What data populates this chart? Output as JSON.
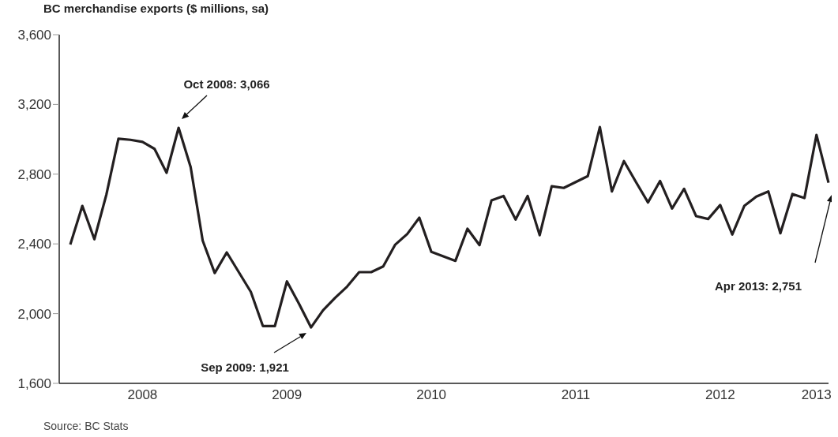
{
  "chart_data": {
    "type": "line",
    "title": "BC merchandise exports ($ millions, sa)",
    "categories": [
      null,
      null,
      null,
      null,
      null,
      null,
      "2008",
      null,
      null,
      null,
      null,
      null,
      null,
      null,
      null,
      null,
      null,
      null,
      "2009",
      null,
      null,
      null,
      null,
      null,
      null,
      null,
      null,
      null,
      null,
      null,
      "2010",
      null,
      null,
      null,
      null,
      null,
      null,
      null,
      null,
      null,
      null,
      null,
      "2011",
      null,
      null,
      null,
      null,
      null,
      null,
      null,
      null,
      null,
      null,
      null,
      "2012",
      null,
      null,
      null,
      null,
      null,
      null,
      null,
      "2013",
      null
    ],
    "series": [
      {
        "color": "#231f20",
        "values": [
          2396,
          2618,
          2427,
          2683,
          3003,
          2997,
          2985,
          2945,
          2808,
          3066,
          2841,
          2419,
          2233,
          2351,
          2238,
          2125,
          1929,
          1929,
          2185,
          2057,
          1921,
          2019,
          2090,
          2155,
          2238,
          2238,
          2271,
          2396,
          2457,
          2550,
          2354,
          2328,
          2303,
          2487,
          2393,
          2650,
          2675,
          2540,
          2675,
          2450,
          2731,
          2721,
          2755,
          2789,
          3070,
          2701,
          2875,
          2755,
          2638,
          2761,
          2603,
          2716,
          2559,
          2543,
          2623,
          2454,
          2618,
          2671,
          2701,
          2461,
          2686,
          2663,
          3025,
          2751
        ]
      }
    ],
    "ylim": [
      1600,
      3600
    ],
    "yticks": [
      {
        "value": 1600,
        "label": "1,600"
      },
      {
        "value": 2000,
        "label": "2,000"
      },
      {
        "value": 2400,
        "label": "2,400"
      },
      {
        "value": 2800,
        "label": "2,800"
      },
      {
        "value": 3200,
        "label": "3,200"
      },
      {
        "value": 3600,
        "label": "3,600"
      }
    ],
    "grid": false,
    "legend": false,
    "marker": "none",
    "line_style": "solid",
    "annotations": [
      "Oct 2008: 3,066",
      "Sep 2009: 1,921",
      "Apr 2013: 2,751",
      "Source: BC Stats"
    ]
  }
}
